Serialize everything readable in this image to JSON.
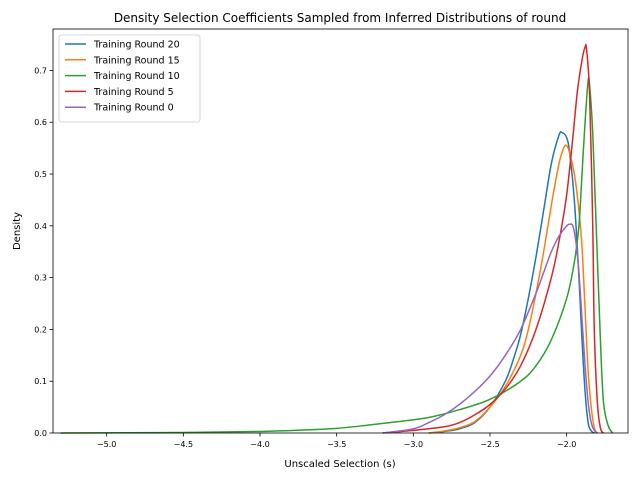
{
  "chart_data": {
    "type": "line",
    "title": "Density Selection Coefficients Sampled from Inferred Distributions of round",
    "xlabel": "Unscaled Selection (s)",
    "ylabel": "Density",
    "xlim": [
      -5.35,
      -1.6
    ],
    "ylim": [
      0,
      0.78
    ],
    "xticks": [
      -5.0,
      -4.5,
      -4.0,
      -3.5,
      -3.0,
      -2.5,
      -2.0
    ],
    "xtick_labels": [
      "−5.0",
      "−4.5",
      "−4.0",
      "−3.5",
      "−3.0",
      "−2.5",
      "−2.0"
    ],
    "yticks": [
      0.0,
      0.1,
      0.2,
      0.3,
      0.4,
      0.5,
      0.6,
      0.7
    ],
    "ytick_labels": [
      "0.0",
      "0.1",
      "0.2",
      "0.3",
      "0.4",
      "0.5",
      "0.6",
      "0.7"
    ],
    "grid": false,
    "legend_position": "top-left",
    "series": [
      {
        "name": "Training Round 20",
        "color": "#1f77b4",
        "x": [
          -2.9,
          -2.8,
          -2.7,
          -2.6,
          -2.5,
          -2.4,
          -2.35,
          -2.3,
          -2.25,
          -2.2,
          -2.15,
          -2.1,
          -2.05,
          -2.03,
          -2.0,
          -1.98,
          -1.95,
          -1.92,
          -1.9,
          -1.88,
          -1.86,
          -1.84,
          -1.82
        ],
        "y": [
          0.0,
          0.003,
          0.008,
          0.02,
          0.05,
          0.1,
          0.14,
          0.19,
          0.26,
          0.34,
          0.43,
          0.52,
          0.575,
          0.58,
          0.57,
          0.54,
          0.45,
          0.3,
          0.18,
          0.08,
          0.02,
          0.004,
          0.0
        ]
      },
      {
        "name": "Training Round 15",
        "color": "#ff7f0e",
        "x": [
          -2.9,
          -2.8,
          -2.7,
          -2.6,
          -2.5,
          -2.4,
          -2.3,
          -2.25,
          -2.2,
          -2.15,
          -2.1,
          -2.05,
          -2.02,
          -2.0,
          -1.98,
          -1.95,
          -1.92,
          -1.9,
          -1.88,
          -1.86,
          -1.84,
          -1.82,
          -1.8
        ],
        "y": [
          0.0,
          0.004,
          0.01,
          0.022,
          0.05,
          0.09,
          0.15,
          0.2,
          0.27,
          0.35,
          0.44,
          0.52,
          0.55,
          0.555,
          0.54,
          0.5,
          0.43,
          0.36,
          0.24,
          0.12,
          0.05,
          0.01,
          0.0
        ]
      },
      {
        "name": "Training Round 10",
        "color": "#2ca02c",
        "x": [
          -5.3,
          -4.5,
          -4.0,
          -3.7,
          -3.5,
          -3.3,
          -3.1,
          -2.9,
          -2.7,
          -2.5,
          -2.3,
          -2.2,
          -2.1,
          -2.0,
          -1.95,
          -1.92,
          -1.9,
          -1.88,
          -1.86,
          -1.85,
          -1.83,
          -1.81,
          -1.78,
          -1.76,
          -1.73,
          -1.7
        ],
        "y": [
          0.0,
          0.001,
          0.003,
          0.006,
          0.009,
          0.015,
          0.022,
          0.03,
          0.045,
          0.065,
          0.1,
          0.13,
          0.18,
          0.26,
          0.33,
          0.4,
          0.5,
          0.6,
          0.68,
          0.67,
          0.58,
          0.42,
          0.18,
          0.06,
          0.015,
          0.0
        ]
      },
      {
        "name": "Training Round 5",
        "color": "#d62728",
        "x": [
          -3.2,
          -3.0,
          -2.8,
          -2.7,
          -2.6,
          -2.5,
          -2.4,
          -2.3,
          -2.2,
          -2.1,
          -2.05,
          -2.0,
          -1.96,
          -1.93,
          -1.9,
          -1.88,
          -1.87,
          -1.85,
          -1.83,
          -1.82,
          -1.8,
          -1.78,
          -1.76
        ],
        "y": [
          0.0,
          0.005,
          0.012,
          0.02,
          0.035,
          0.055,
          0.085,
          0.13,
          0.2,
          0.3,
          0.37,
          0.46,
          0.57,
          0.66,
          0.72,
          0.745,
          0.74,
          0.65,
          0.4,
          0.2,
          0.06,
          0.01,
          0.0
        ]
      },
      {
        "name": "Training Round 0",
        "color": "#9467bd",
        "x": [
          -3.2,
          -3.0,
          -2.9,
          -2.8,
          -2.7,
          -2.6,
          -2.5,
          -2.4,
          -2.3,
          -2.2,
          -2.15,
          -2.1,
          -2.05,
          -2.0,
          -1.98,
          -1.96,
          -1.94,
          -1.92,
          -1.9,
          -1.88,
          -1.86,
          -1.84,
          -1.82,
          -1.8
        ],
        "y": [
          0.0,
          0.008,
          0.02,
          0.035,
          0.055,
          0.08,
          0.11,
          0.15,
          0.2,
          0.27,
          0.31,
          0.35,
          0.38,
          0.4,
          0.403,
          0.4,
          0.37,
          0.31,
          0.22,
          0.13,
          0.06,
          0.02,
          0.005,
          0.0
        ]
      }
    ]
  }
}
